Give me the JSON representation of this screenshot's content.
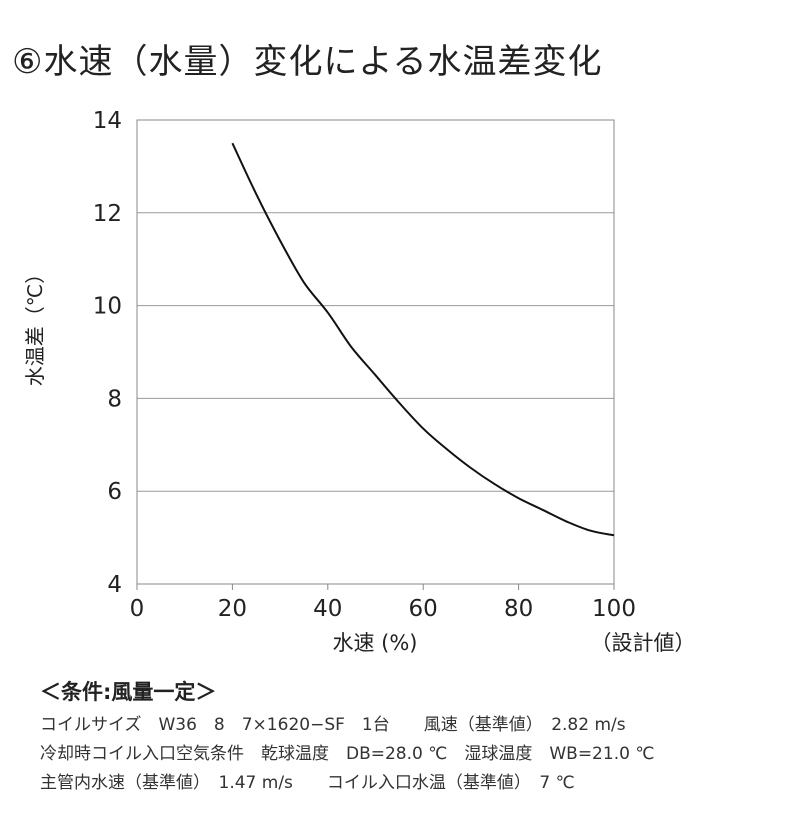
{
  "title": "⑥水速（水量）変化による水温差変化",
  "chart_data": {
    "type": "line",
    "title": "⑥水速（水量）変化による水温差変化",
    "xlabel": "水速 (%)",
    "x_note": "（設計値）",
    "ylabel": "水温差（℃）",
    "xlim": [
      0,
      100
    ],
    "ylim": [
      4,
      14
    ],
    "x_ticks": [
      0,
      20,
      40,
      60,
      80,
      100
    ],
    "y_ticks": [
      4,
      6,
      8,
      10,
      12,
      14
    ],
    "grid": "horizontal",
    "line_color": "#111111",
    "grid_color": "#9a9a9a",
    "series": [
      {
        "x": [
          20,
          25,
          30,
          35,
          40,
          45,
          50,
          55,
          60,
          65,
          70,
          75,
          80,
          85,
          90,
          95,
          100
        ],
        "values": [
          13.5,
          12.4,
          11.4,
          10.5,
          9.85,
          9.1,
          8.5,
          7.9,
          7.35,
          6.9,
          6.5,
          6.15,
          5.85,
          5.6,
          5.35,
          5.15,
          5.05
        ]
      }
    ]
  },
  "conditions": {
    "heading": "＜条件:風量一定＞",
    "lines": [
      "コイルサイズ　W36　8　7×1620−SF　1台　　風速（基準値）　2.82 m/s",
      "冷却時コイル入口空気条件　乾球温度　DB=28.0 ℃　湿球温度　WB=21.0 ℃",
      "主管内水速（基準値）　1.47 m/s　　コイル入口水温（基準値）　7 ℃"
    ]
  }
}
